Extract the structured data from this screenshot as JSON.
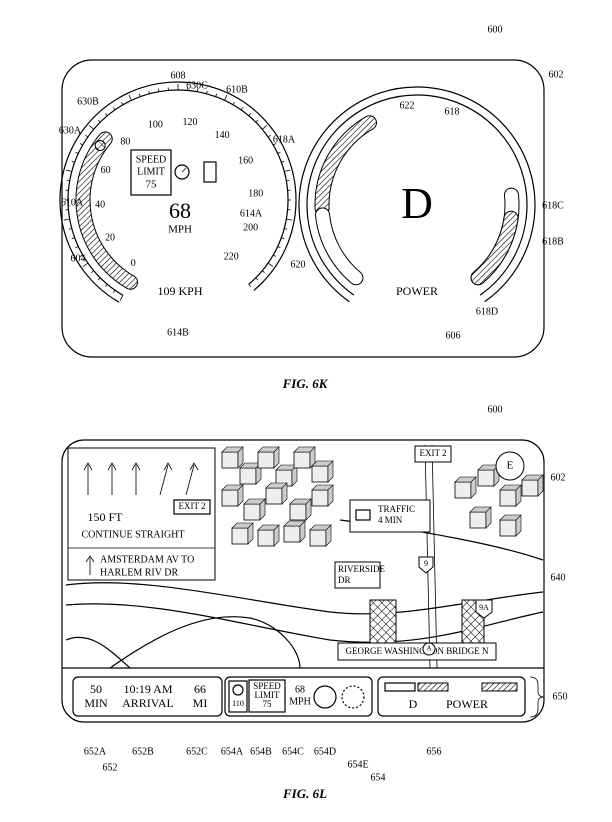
{
  "fig_6k": {
    "reference_numerals": [
      "600",
      "602",
      "608",
      "630C",
      "610B",
      "630B",
      "630A",
      "618A",
      "622",
      "618",
      "610A",
      "604",
      "618C",
      "618B",
      "620",
      "618D",
      "606",
      "614B",
      "614A"
    ],
    "speedometer": {
      "ticks": [
        "0",
        "20",
        "40",
        "60",
        "80",
        "100",
        "120",
        "140",
        "160",
        "180",
        "200",
        "220"
      ],
      "speed_limit": [
        "SPEED",
        "LIMIT",
        "75"
      ],
      "speed": "68",
      "speed_unit": "MPH",
      "secondary_speed": "109 KPH"
    },
    "power_gauge": {
      "gear": "D",
      "label": "POWER"
    },
    "caption": "FIG. 6K"
  },
  "fig_6l": {
    "reference_numerals": [
      "600",
      "602",
      "640",
      "650",
      "652A",
      "652",
      "652B",
      "652C",
      "654A",
      "654B",
      "654C",
      "654D",
      "654E",
      "654",
      "656"
    ],
    "navigation_card": {
      "distance": "150 FT",
      "exit": "EXIT 2",
      "instruction": "CONTINUE STRAIGHT",
      "next_step": [
        "AMSTERDAM AV TO",
        "HARLEM RIV DR"
      ]
    },
    "map_labels": {
      "exit": "EXIT 2",
      "traffic": [
        "TRAFFIC",
        "4 MIN"
      ],
      "street": [
        "RIVERSIDE",
        "DR"
      ],
      "bridge": "GEORGE WASHINGTON BRIDGE N",
      "route_9": "9",
      "route_9a": "9A",
      "route_a": "A",
      "compass": "E"
    },
    "trip_info": {
      "time_remaining": [
        "50",
        "MIN"
      ],
      "arrival": [
        "10:19 AM",
        "ARRIVAL"
      ],
      "distance": [
        "66",
        "MI"
      ]
    },
    "speed_panel": {
      "min_speed": "110",
      "speed_limit": [
        "SPEED",
        "LIMIT",
        "75"
      ],
      "speed": [
        "68",
        "MPH"
      ]
    },
    "power_panel": {
      "gear": "D",
      "label": "POWER"
    },
    "caption": "FIG. 6L"
  }
}
